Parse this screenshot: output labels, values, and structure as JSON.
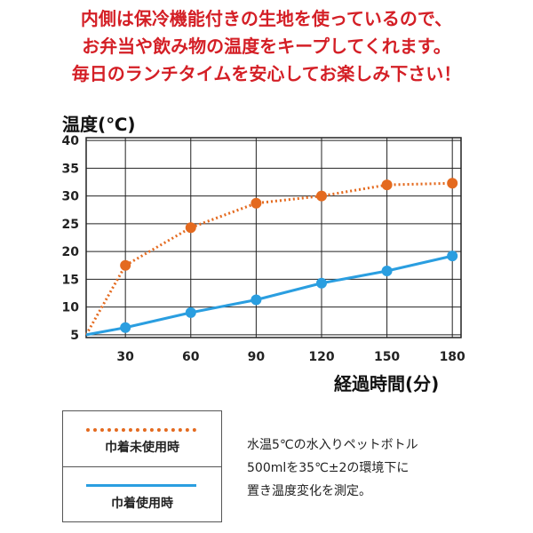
{
  "header": {
    "lines": [
      "内側は保冷機能付きの生地を使っているので、",
      "お弁当や飲み物の温度をキープしてくれます。",
      "毎日のランチタイムを安心してお楽しみ下さい！"
    ]
  },
  "legend": {
    "items": [
      {
        "label": "巾着未使用時",
        "style": "dotted",
        "color": "#e46a1f"
      },
      {
        "label": "巾着使用時",
        "style": "solid",
        "color": "#2a9ee0"
      }
    ]
  },
  "note": {
    "lines": [
      "水温5℃の水入りペットボトル",
      "500mlを35℃±2の環境下に",
      "置き温度変化を測定。"
    ]
  },
  "chart_data": {
    "type": "line",
    "ylabel": "温度(℃)",
    "xlabel": "経過時間(分)",
    "x_ticks": [
      30,
      60,
      90,
      120,
      150,
      180
    ],
    "y_ticks": [
      5,
      10,
      15,
      20,
      25,
      30,
      35,
      40
    ],
    "xlim": [
      12,
      184
    ],
    "ylim": [
      4.5,
      40.5
    ],
    "grid": true,
    "series": [
      {
        "name": "巾着未使用時",
        "color": "#e46a1f",
        "style": "dotted",
        "x": [
          12,
          30,
          60,
          90,
          120,
          150,
          180
        ],
        "y": [
          5,
          17.5,
          24.3,
          28.7,
          30,
          32,
          32.3
        ]
      },
      {
        "name": "巾着使用時",
        "color": "#2a9ee0",
        "style": "solid",
        "x": [
          12,
          30,
          60,
          90,
          120,
          150,
          180
        ],
        "y": [
          5,
          6.3,
          9,
          11.3,
          14.3,
          16.5,
          19.2
        ]
      }
    ]
  }
}
